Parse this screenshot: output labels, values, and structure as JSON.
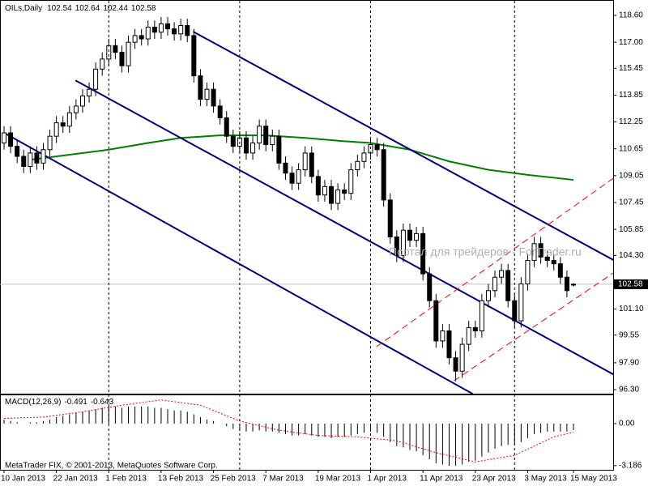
{
  "chart_data": {
    "type": "candlestick",
    "title": "OILs,Daily",
    "copyright": "MetaTrader FIX, © 2001-2013, MetaQuotes Software Corp.",
    "watermark": "Портал для трейдеров - ForTrader.ru",
    "up_color": "#ffffff",
    "down_color": "#000000",
    "categories": [
      "10 Jan 2013",
      null,
      null,
      null,
      null,
      null,
      null,
      null,
      "22 Jan 2013",
      null,
      null,
      null,
      null,
      null,
      null,
      null,
      "1 Feb 2013",
      null,
      null,
      null,
      null,
      null,
      null,
      null,
      "13 Feb 2013",
      null,
      null,
      null,
      null,
      null,
      null,
      null,
      "25 Feb 2013",
      null,
      null,
      null,
      null,
      null,
      null,
      null,
      "7 Mar 2013",
      null,
      null,
      null,
      null,
      null,
      null,
      null,
      "19 Mar 2013",
      null,
      null,
      null,
      null,
      null,
      null,
      null,
      "1 Apr 2013",
      null,
      null,
      null,
      null,
      null,
      null,
      null,
      "11 Apr 2013",
      null,
      null,
      null,
      null,
      null,
      null,
      null,
      "23 Apr 2013",
      null,
      null,
      null,
      null,
      null,
      null,
      null,
      "3 May 2013",
      null,
      null,
      null,
      null,
      null,
      null,
      "15 May 2013"
    ],
    "open": [
      111.0,
      111.6,
      110.8,
      110.2,
      109.6,
      110.4,
      109.8,
      110.6,
      111.4,
      112.2,
      112.0,
      112.8,
      113.2,
      113.8,
      114.2,
      115.4,
      116.0,
      116.8,
      116.4,
      115.6,
      117.0,
      117.4,
      117.2,
      117.9,
      117.6,
      118.1,
      117.8,
      117.5,
      118.0,
      117.4,
      115.0,
      113.6,
      114.2,
      113.2,
      112.5,
      111.4,
      110.8,
      111.3,
      110.4,
      111.0,
      112.0,
      110.9,
      111.4,
      109.8,
      109.2,
      108.6,
      109.4,
      110.4,
      109.0,
      107.9,
      108.4,
      107.4,
      108.2,
      108.0,
      109.4,
      109.9,
      110.4,
      110.9,
      110.6,
      107.6,
      105.4,
      104.3,
      105.8,
      105.2,
      105.6,
      103.2,
      101.6,
      99.2,
      99.8,
      98.2,
      97.4,
      99.0,
      100.0,
      99.8,
      101.6,
      102.2,
      103.0,
      103.4,
      101.6,
      100.4,
      102.6,
      104.0,
      105.0,
      104.2,
      104.0,
      103.8,
      103.0,
      102.54
    ],
    "high": [
      112.0,
      112.0,
      111.2,
      110.6,
      110.8,
      110.8,
      111.0,
      111.8,
      112.6,
      112.6,
      113.2,
      113.6,
      114.2,
      114.6,
      115.8,
      116.4,
      117.2,
      117.2,
      116.8,
      117.4,
      117.8,
      117.8,
      118.3,
      118.3,
      118.5,
      118.5,
      118.2,
      118.4,
      118.4,
      117.8,
      115.4,
      114.6,
      114.6,
      113.6,
      112.9,
      111.8,
      111.7,
      111.7,
      111.4,
      112.4,
      112.4,
      111.8,
      111.8,
      110.2,
      109.6,
      109.8,
      110.8,
      110.8,
      109.4,
      108.8,
      108.8,
      108.6,
      108.6,
      109.8,
      110.3,
      110.8,
      111.3,
      111.3,
      111.0,
      108.0,
      105.8,
      106.2,
      106.2,
      106.0,
      106.0,
      103.6,
      102.0,
      100.2,
      100.2,
      98.6,
      99.4,
      100.4,
      100.4,
      102.0,
      102.6,
      103.4,
      103.8,
      103.8,
      102.0,
      103.0,
      104.4,
      105.4,
      105.4,
      104.6,
      104.4,
      104.2,
      103.4,
      102.64
    ],
    "low": [
      110.6,
      110.4,
      109.8,
      109.2,
      109.2,
      109.4,
      109.4,
      110.2,
      111.0,
      111.6,
      111.6,
      112.4,
      112.8,
      113.4,
      113.8,
      115.0,
      115.6,
      116.0,
      115.2,
      115.2,
      116.6,
      116.8,
      116.8,
      117.2,
      117.2,
      117.4,
      117.1,
      117.1,
      117.0,
      114.6,
      113.2,
      113.2,
      112.8,
      112.1,
      111.0,
      110.4,
      110.4,
      110.0,
      110.0,
      110.6,
      110.5,
      110.5,
      109.4,
      108.8,
      108.2,
      108.2,
      109.0,
      108.6,
      107.5,
      107.5,
      107.0,
      107.0,
      107.6,
      107.6,
      109.0,
      109.5,
      110.0,
      110.2,
      107.2,
      105.0,
      103.9,
      103.9,
      104.8,
      104.8,
      102.8,
      101.2,
      98.8,
      98.8,
      97.8,
      96.8,
      97.0,
      98.6,
      99.4,
      99.4,
      101.2,
      101.8,
      102.6,
      101.2,
      100.0,
      100.0,
      102.2,
      103.6,
      103.8,
      103.6,
      103.4,
      102.6,
      101.8,
      102.44
    ],
    "close": [
      111.6,
      110.8,
      110.2,
      109.6,
      110.4,
      109.8,
      110.6,
      111.4,
      112.2,
      112.0,
      112.8,
      113.2,
      113.8,
      114.2,
      115.4,
      116.0,
      116.8,
      116.4,
      115.6,
      117.0,
      117.4,
      117.2,
      117.9,
      117.6,
      118.1,
      117.8,
      117.5,
      118.0,
      117.4,
      115.0,
      113.6,
      114.2,
      113.2,
      112.5,
      111.4,
      110.8,
      111.3,
      110.4,
      111.0,
      112.0,
      110.9,
      111.4,
      109.8,
      109.2,
      108.6,
      109.4,
      110.4,
      109.0,
      107.9,
      108.4,
      107.4,
      108.2,
      108.0,
      109.4,
      109.9,
      110.4,
      110.9,
      110.6,
      107.6,
      105.4,
      104.3,
      105.8,
      105.2,
      105.6,
      103.2,
      101.6,
      99.2,
      99.8,
      98.2,
      97.4,
      99.0,
      100.0,
      99.8,
      101.6,
      102.2,
      103.0,
      103.4,
      101.6,
      100.4,
      102.6,
      104.0,
      105.0,
      104.2,
      104.0,
      103.8,
      103.0,
      102.2,
      102.58
    ],
    "ylim": [
      96.06,
      119.47
    ],
    "yticks": [
      {
        "value": 118.6,
        "label": "118.60"
      },
      {
        "value": 117,
        "label": "117.00"
      },
      115.45,
      113.85,
      112.25,
      110.65,
      109.05,
      107.45,
      105.85,
      {
        "value": 104.3,
        "label": "104.30"
      },
      {
        "value": 101.1,
        "label": "101.10"
      },
      99.55,
      {
        "value": 97.9,
        "label": "97.90"
      },
      {
        "value": 96.3,
        "label": "96.30"
      }
    ],
    "month_lines": [
      16,
      36,
      56,
      78
    ],
    "moving_average": {
      "color": "#008000",
      "x": [
        4,
        10,
        16,
        22,
        27,
        33,
        40,
        46,
        52,
        56,
        62,
        68,
        74,
        80,
        87
      ],
      "values": [
        110.0,
        110.3,
        110.6,
        111.0,
        111.3,
        111.45,
        111.45,
        111.3,
        111.1,
        111.0,
        110.6,
        109.9,
        109.4,
        109.1,
        108.8
      ]
    },
    "trendlines": [
      {
        "color": "#000080",
        "style": "solid",
        "points": [
          [
            28.9,
            117.63
          ],
          [
            94.4,
            103.75
          ]
        ]
      },
      {
        "color": "#000080",
        "style": "solid",
        "points": [
          [
            10.9,
            114.73
          ],
          [
            94.4,
            96.93
          ]
        ]
      },
      {
        "color": "#000080",
        "style": "solid",
        "points": [
          [
            0,
            111.6
          ],
          [
            71.6,
            96.05
          ]
        ]
      },
      {
        "color": "#ff0000",
        "style": "dashed",
        "points": [
          [
            56.9,
            98.86
          ],
          [
            94.4,
            109.26
          ]
        ]
      },
      {
        "color": "#ff0000",
        "style": "dashed",
        "points": [
          [
            68.75,
            96.83
          ],
          [
            94.4,
            103.6
          ]
        ]
      }
    ],
    "macd": {
      "title": "MACD(12,26,9)",
      "ylim": [
        -3.5,
        2.15
      ],
      "yticks": [
        {
          "value": 0,
          "label": "0.00"
        },
        -3.186
      ],
      "histogram": [
        0.3,
        0.2,
        0.1,
        0.0,
        0.1,
        0.1,
        0.2,
        0.3,
        0.5,
        0.6,
        0.7,
        0.8,
        0.9,
        1.0,
        1.1,
        1.2,
        1.3,
        1.3,
        1.2,
        1.3,
        1.3,
        1.3,
        1.3,
        1.2,
        1.2,
        1.1,
        1.0,
        1.0,
        0.9,
        0.7,
        0.5,
        0.3,
        0.2,
        0.0,
        -0.2,
        -0.4,
        -0.5,
        -0.6,
        -0.6,
        -0.5,
        -0.6,
        -0.6,
        -0.7,
        -0.8,
        -0.9,
        -0.9,
        -0.8,
        -0.9,
        -1.0,
        -1.0,
        -1.1,
        -1.0,
        -1.0,
        -0.9,
        -0.8,
        -0.7,
        -0.6,
        -0.7,
        -1.0,
        -1.4,
        -1.7,
        -1.8,
        -2.0,
        -2.1,
        -2.4,
        -2.7,
        -3.0,
        -3.1,
        -3.2,
        -3.2,
        -3.1,
        -2.9,
        -2.8,
        -2.5,
        -2.2,
        -1.9,
        -1.7,
        -1.6,
        -1.6,
        -1.4,
        -1.1,
        -0.8,
        -0.7,
        -0.6,
        -0.6,
        -0.6,
        -0.6,
        -0.491
      ],
      "signal": {
        "color": "#ff0000",
        "x": [
          0,
          6,
          12,
          18,
          24,
          30,
          36,
          42,
          48,
          54,
          60,
          66,
          72,
          78,
          84,
          87
        ],
        "values": [
          0.4,
          0.5,
          0.9,
          1.4,
          1.8,
          1.4,
          0.2,
          -0.5,
          -0.9,
          -1.0,
          -1.3,
          -2.2,
          -2.9,
          -2.4,
          -1.0,
          -0.643
        ]
      }
    }
  }
}
